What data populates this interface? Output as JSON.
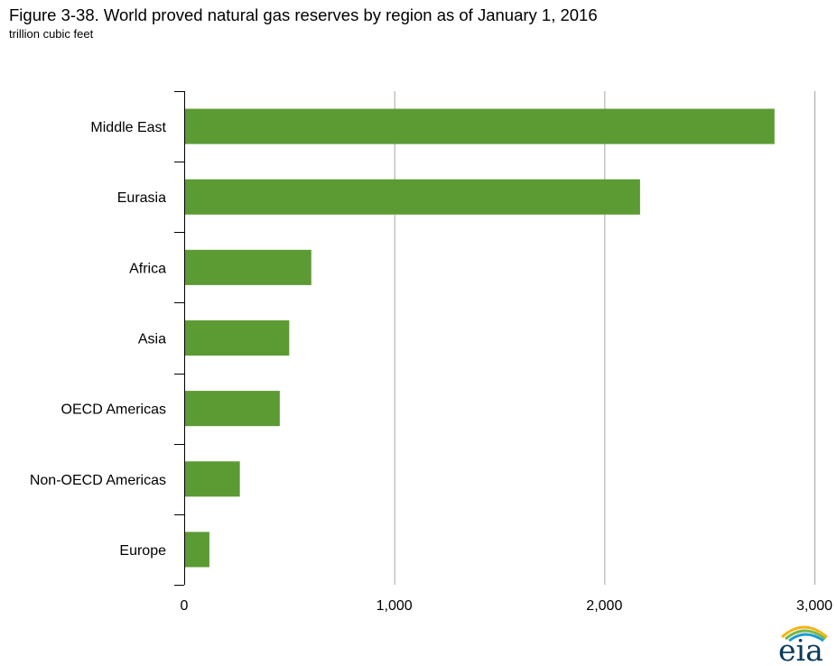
{
  "header": {
    "title": "Figure 3-38. World proved natural gas reserves by region as of January 1, 2016",
    "subtitle": "trillion cubic feet"
  },
  "logo": {
    "text": "eia",
    "icon": "eia-logo-icon"
  },
  "colors": {
    "bar": "#5c9a34",
    "grid": "#a6a6a6",
    "axis": "#000000"
  },
  "chart_data": {
    "type": "bar",
    "orientation": "horizontal",
    "title": "Figure 3-38. World proved natural gas reserves by region as of January 1, 2016",
    "subtitle": "trillion cubic feet",
    "categories": [
      "Middle East",
      "Eurasia",
      "Africa",
      "Asia",
      "OECD Americas",
      "Non-OECD Americas",
      "Europe"
    ],
    "values": [
      2810,
      2170,
      605,
      500,
      455,
      265,
      120
    ],
    "xlim": [
      0,
      3000
    ],
    "xticks": [
      0,
      1000,
      2000,
      3000
    ],
    "xtick_labels": [
      "0",
      "1,000",
      "2,000",
      "3,000"
    ],
    "grid": "vertical",
    "legend": "none"
  }
}
